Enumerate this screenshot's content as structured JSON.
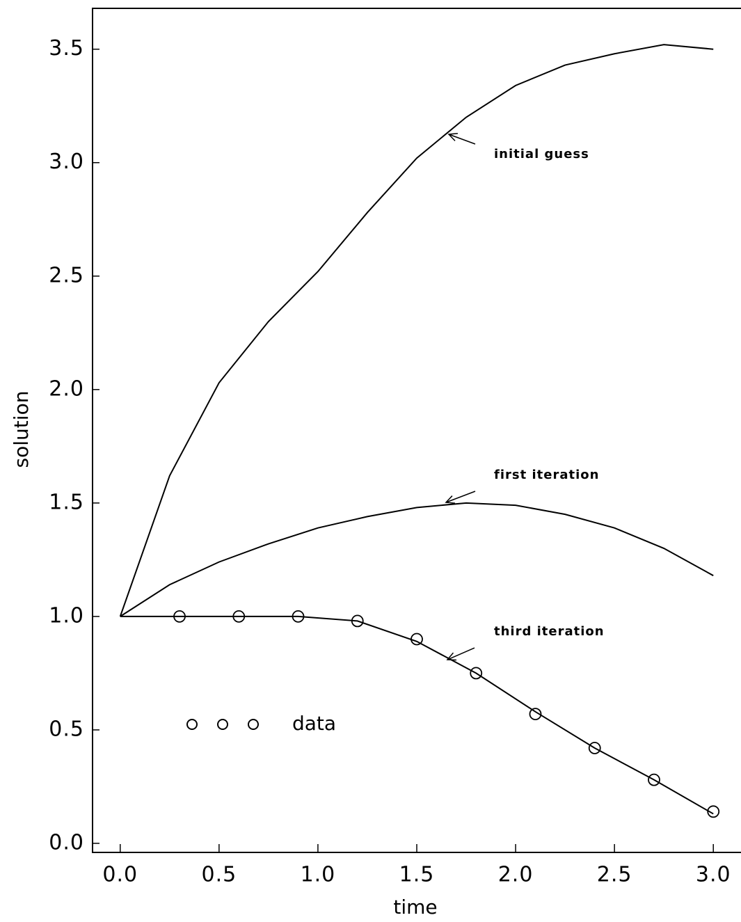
{
  "chart_data": {
    "type": "line",
    "x_label": "time",
    "y_label": "solution",
    "xlim": [
      -0.14,
      3.14
    ],
    "ylim": [
      -0.04,
      3.68
    ],
    "xticks": [
      {
        "value": 0,
        "label": "0.0"
      },
      0.5,
      {
        "value": 1,
        "label": "1.0"
      },
      1.5,
      {
        "value": 2,
        "label": "2.0"
      },
      2.5,
      {
        "value": 3,
        "label": "3.0"
      }
    ],
    "yticks": [
      {
        "value": 0,
        "label": "0.0"
      },
      0.5,
      {
        "value": 1,
        "label": "1.0"
      },
      1.5,
      {
        "value": 2,
        "label": "2.0"
      },
      2.5,
      {
        "value": 3,
        "label": "3.0"
      },
      3.5
    ],
    "series": [
      {
        "name": "initial guess",
        "color": "#000000",
        "x": [
          0,
          0.25,
          0.5,
          0.75,
          1.0,
          1.25,
          1.5,
          1.75,
          2.0,
          2.25,
          2.5,
          2.75,
          3.0
        ],
        "values": [
          1.0,
          1.62,
          2.03,
          2.3,
          2.52,
          2.78,
          3.02,
          3.2,
          3.34,
          3.43,
          3.48,
          3.52,
          3.5
        ]
      },
      {
        "name": "first iteration",
        "color": "#000000",
        "x": [
          0,
          0.25,
          0.5,
          0.75,
          1.0,
          1.25,
          1.5,
          1.75,
          2.0,
          2.25,
          2.5,
          2.75,
          3.0
        ],
        "values": [
          1.0,
          1.14,
          1.24,
          1.32,
          1.39,
          1.44,
          1.48,
          1.5,
          1.49,
          1.45,
          1.39,
          1.3,
          1.18
        ]
      },
      {
        "name": "third iteration",
        "color": "#000000",
        "x": [
          0,
          0.3,
          0.6,
          0.9,
          1.2,
          1.5,
          1.8,
          2.1,
          2.4,
          2.7,
          3.0
        ],
        "values": [
          1.0,
          1.0,
          1.0,
          1.0,
          0.98,
          0.89,
          0.75,
          0.58,
          0.42,
          0.28,
          0.13
        ]
      },
      {
        "name": "data",
        "color": "#000000",
        "marker": "circle",
        "x": [
          0.3,
          0.6,
          0.9,
          1.2,
          1.5,
          1.8,
          2.1,
          2.4,
          2.7,
          3.0
        ],
        "values": [
          1.0,
          1.0,
          1.0,
          0.98,
          0.9,
          0.75,
          0.57,
          0.42,
          0.28,
          0.14
        ]
      }
    ]
  }
}
